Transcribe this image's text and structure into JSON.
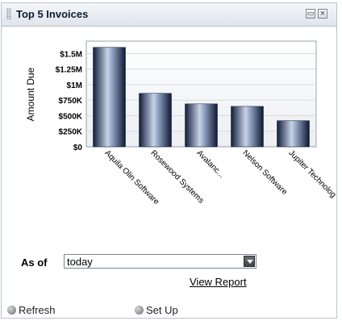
{
  "portlet": {
    "title": "Top 5 Invoices",
    "minimize_glyph": "▭",
    "close_glyph": "×"
  },
  "chart_data": {
    "type": "bar",
    "ylabel": "Amount Due",
    "categories": [
      "Aquila Olin Software",
      "Rosewood Systems",
      "Avalanc...",
      "Nelson Software",
      "Jupiter Technolog"
    ],
    "values": [
      1600000,
      860000,
      690000,
      650000,
      420000
    ],
    "ylim": [
      0,
      1700000
    ],
    "yticks": [
      {
        "value": 0,
        "label": "$0"
      },
      {
        "value": 250000,
        "label": "$250K"
      },
      {
        "value": 500000,
        "label": "$500K"
      },
      {
        "value": 750000,
        "label": "$750K"
      },
      {
        "value": 1000000,
        "label": "$1M"
      },
      {
        "value": 1250000,
        "label": "$1.25M"
      },
      {
        "value": 1500000,
        "label": "$1.5M"
      }
    ],
    "grid": true,
    "bar_color": "#1c2e5a"
  },
  "filter": {
    "as_of_label": "As of",
    "as_of_value": "today",
    "view_report": "View Report"
  },
  "footer": {
    "refresh": "Refresh",
    "setup": "Set Up"
  }
}
